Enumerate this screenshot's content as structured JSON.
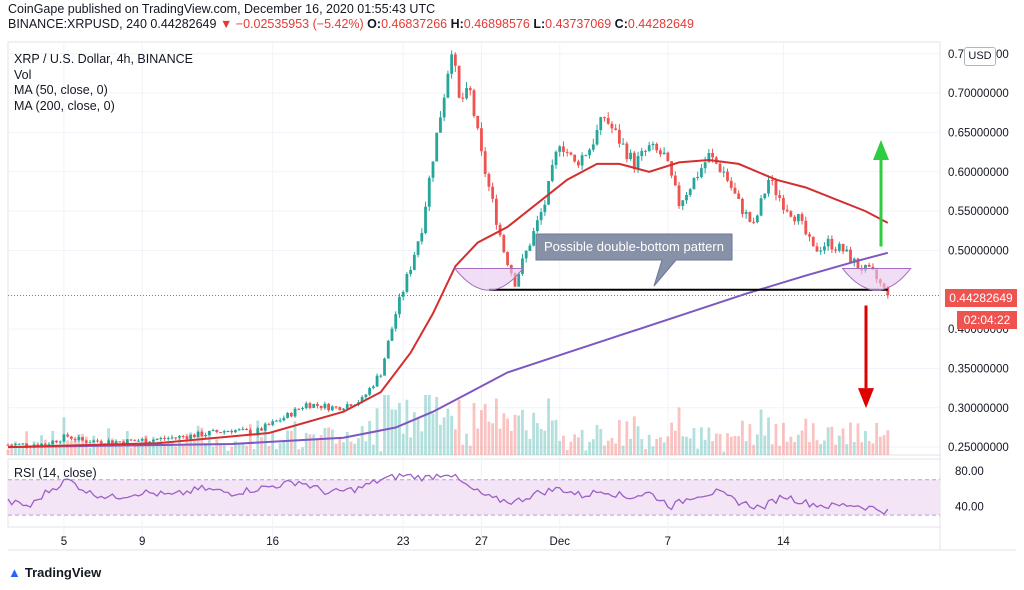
{
  "header": {
    "line1": "CoinGape published on TradingView.com, December 16, 2020 01:55:43 UTC",
    "symbol": "BINANCE:XRPUSD, 240",
    "last": "0.44282649",
    "change": "▼ −0.02535953 (−5.42%)",
    "o_key": "O:",
    "o": "0.46837266",
    "h_key": "H:",
    "h": "0.46898576",
    "l_key": "L:",
    "l": "0.43737069",
    "c_key": "C:",
    "c": "0.44282649"
  },
  "legend": {
    "title": "XRP / U.S. Dollar, 4h, BINANCE",
    "vol": "Vol",
    "ma50": "MA (50, close, 0)",
    "ma200": "MA (200, close, 0)"
  },
  "rsi_label": "RSI (14, close)",
  "currency_badge": "USD",
  "price_tag": "0.44282649",
  "time_tag": "02:04:22",
  "annotation": "Possible double-bottom pattern",
  "footer": "TradingView",
  "colors": {
    "up": "#26a69a",
    "down": "#ef5350",
    "ma50": "#d32f2f",
    "ma200": "#7e57c2",
    "rsi": "#9c5fc9",
    "rsi_band": "#f3e5f5",
    "arrow_up": "#2ecc40",
    "arrow_down": "#e00000",
    "callout": "#8792a8",
    "bowl": "#e6c8f0"
  },
  "chart_data": {
    "type": "candlestick",
    "title": "XRP / U.S. Dollar, 4h, BINANCE",
    "x_tick_labels": [
      "5",
      "9",
      "16",
      "23",
      "27",
      "Dec",
      "7",
      "14"
    ],
    "y_tick_labels": [
      "0.75000000",
      "0.70000000",
      "0.65000000",
      "0.60000000",
      "0.55000000",
      "0.50000000",
      "0.40000000",
      "0.35000000",
      "0.30000000",
      "0.25000000"
    ],
    "y_ticks": [
      0.75,
      0.7,
      0.65,
      0.6,
      0.55,
      0.5,
      0.4,
      0.35,
      0.3,
      0.25
    ],
    "ylim": [
      0.24,
      0.765
    ],
    "rsi_tick_labels": [
      "80.00",
      "40.00"
    ],
    "rsi_ticks": [
      80,
      40
    ],
    "rsi_band": [
      30,
      70
    ],
    "price_line": 0.44282649,
    "support_level": 0.45,
    "close_path": [
      {
        "x": 0,
        "y": 0.253
      },
      {
        "x": 10,
        "y": 0.254
      },
      {
        "x": 16,
        "y": 0.264
      },
      {
        "x": 20,
        "y": 0.258
      },
      {
        "x": 30,
        "y": 0.257
      },
      {
        "x": 40,
        "y": 0.26
      },
      {
        "x": 50,
        "y": 0.265
      },
      {
        "x": 60,
        "y": 0.272
      },
      {
        "x": 66,
        "y": 0.268
      },
      {
        "x": 75,
        "y": 0.29
      },
      {
        "x": 80,
        "y": 0.305
      },
      {
        "x": 88,
        "y": 0.3
      },
      {
        "x": 95,
        "y": 0.31
      },
      {
        "x": 100,
        "y": 0.345
      },
      {
        "x": 104,
        "y": 0.42
      },
      {
        "x": 108,
        "y": 0.48
      },
      {
        "x": 111,
        "y": 0.53
      },
      {
        "x": 114,
        "y": 0.62
      },
      {
        "x": 117,
        "y": 0.7
      },
      {
        "x": 119,
        "y": 0.76
      },
      {
        "x": 121,
        "y": 0.69
      },
      {
        "x": 124,
        "y": 0.7
      },
      {
        "x": 127,
        "y": 0.62
      },
      {
        "x": 130,
        "y": 0.56
      },
      {
        "x": 133,
        "y": 0.5
      },
      {
        "x": 136,
        "y": 0.46
      },
      {
        "x": 140,
        "y": 0.51
      },
      {
        "x": 144,
        "y": 0.56
      },
      {
        "x": 148,
        "y": 0.64
      },
      {
        "x": 152,
        "y": 0.61
      },
      {
        "x": 156,
        "y": 0.63
      },
      {
        "x": 160,
        "y": 0.67
      },
      {
        "x": 164,
        "y": 0.64
      },
      {
        "x": 168,
        "y": 0.61
      },
      {
        "x": 172,
        "y": 0.63
      },
      {
        "x": 176,
        "y": 0.62
      },
      {
        "x": 180,
        "y": 0.56
      },
      {
        "x": 184,
        "y": 0.59
      },
      {
        "x": 188,
        "y": 0.62
      },
      {
        "x": 192,
        "y": 0.6
      },
      {
        "x": 196,
        "y": 0.56
      },
      {
        "x": 200,
        "y": 0.53
      },
      {
        "x": 204,
        "y": 0.59
      },
      {
        "x": 208,
        "y": 0.56
      },
      {
        "x": 212,
        "y": 0.54
      },
      {
        "x": 216,
        "y": 0.5
      },
      {
        "x": 220,
        "y": 0.51
      },
      {
        "x": 224,
        "y": 0.5
      },
      {
        "x": 228,
        "y": 0.48
      },
      {
        "x": 232,
        "y": 0.47
      },
      {
        "x": 236,
        "y": 0.443
      }
    ],
    "ma50": [
      {
        "x": 0,
        "y": 0.25
      },
      {
        "x": 40,
        "y": 0.255
      },
      {
        "x": 70,
        "y": 0.268
      },
      {
        "x": 90,
        "y": 0.295
      },
      {
        "x": 100,
        "y": 0.32
      },
      {
        "x": 108,
        "y": 0.37
      },
      {
        "x": 114,
        "y": 0.42
      },
      {
        "x": 120,
        "y": 0.48
      },
      {
        "x": 126,
        "y": 0.51
      },
      {
        "x": 134,
        "y": 0.53
      },
      {
        "x": 142,
        "y": 0.56
      },
      {
        "x": 150,
        "y": 0.59
      },
      {
        "x": 158,
        "y": 0.61
      },
      {
        "x": 164,
        "y": 0.61
      },
      {
        "x": 172,
        "y": 0.6
      },
      {
        "x": 180,
        "y": 0.612
      },
      {
        "x": 188,
        "y": 0.615
      },
      {
        "x": 196,
        "y": 0.61
      },
      {
        "x": 206,
        "y": 0.59
      },
      {
        "x": 214,
        "y": 0.58
      },
      {
        "x": 222,
        "y": 0.565
      },
      {
        "x": 230,
        "y": 0.55
      },
      {
        "x": 236,
        "y": 0.535
      }
    ],
    "ma200": [
      {
        "x": 0,
        "y": 0.25
      },
      {
        "x": 60,
        "y": 0.254
      },
      {
        "x": 90,
        "y": 0.262
      },
      {
        "x": 104,
        "y": 0.275
      },
      {
        "x": 114,
        "y": 0.295
      },
      {
        "x": 124,
        "y": 0.32
      },
      {
        "x": 134,
        "y": 0.345
      },
      {
        "x": 150,
        "y": 0.37
      },
      {
        "x": 166,
        "y": 0.395
      },
      {
        "x": 182,
        "y": 0.42
      },
      {
        "x": 198,
        "y": 0.445
      },
      {
        "x": 214,
        "y": 0.468
      },
      {
        "x": 228,
        "y": 0.487
      },
      {
        "x": 236,
        "y": 0.497
      }
    ],
    "rsi": [
      {
        "x": 0,
        "y": 45
      },
      {
        "x": 6,
        "y": 40
      },
      {
        "x": 10,
        "y": 55
      },
      {
        "x": 16,
        "y": 70
      },
      {
        "x": 22,
        "y": 55
      },
      {
        "x": 28,
        "y": 50
      },
      {
        "x": 36,
        "y": 56
      },
      {
        "x": 44,
        "y": 52
      },
      {
        "x": 52,
        "y": 60
      },
      {
        "x": 60,
        "y": 55
      },
      {
        "x": 70,
        "y": 62
      },
      {
        "x": 78,
        "y": 68
      },
      {
        "x": 86,
        "y": 55
      },
      {
        "x": 94,
        "y": 60
      },
      {
        "x": 100,
        "y": 70
      },
      {
        "x": 106,
        "y": 75
      },
      {
        "x": 112,
        "y": 72
      },
      {
        "x": 118,
        "y": 78
      },
      {
        "x": 124,
        "y": 60
      },
      {
        "x": 130,
        "y": 48
      },
      {
        "x": 136,
        "y": 45
      },
      {
        "x": 142,
        "y": 55
      },
      {
        "x": 148,
        "y": 60
      },
      {
        "x": 154,
        "y": 52
      },
      {
        "x": 160,
        "y": 58
      },
      {
        "x": 166,
        "y": 50
      },
      {
        "x": 172,
        "y": 55
      },
      {
        "x": 178,
        "y": 40
      },
      {
        "x": 184,
        "y": 52
      },
      {
        "x": 190,
        "y": 56
      },
      {
        "x": 196,
        "y": 45
      },
      {
        "x": 202,
        "y": 38
      },
      {
        "x": 208,
        "y": 52
      },
      {
        "x": 214,
        "y": 44
      },
      {
        "x": 220,
        "y": 40
      },
      {
        "x": 226,
        "y": 42
      },
      {
        "x": 232,
        "y": 38
      },
      {
        "x": 236,
        "y": 34
      }
    ]
  }
}
